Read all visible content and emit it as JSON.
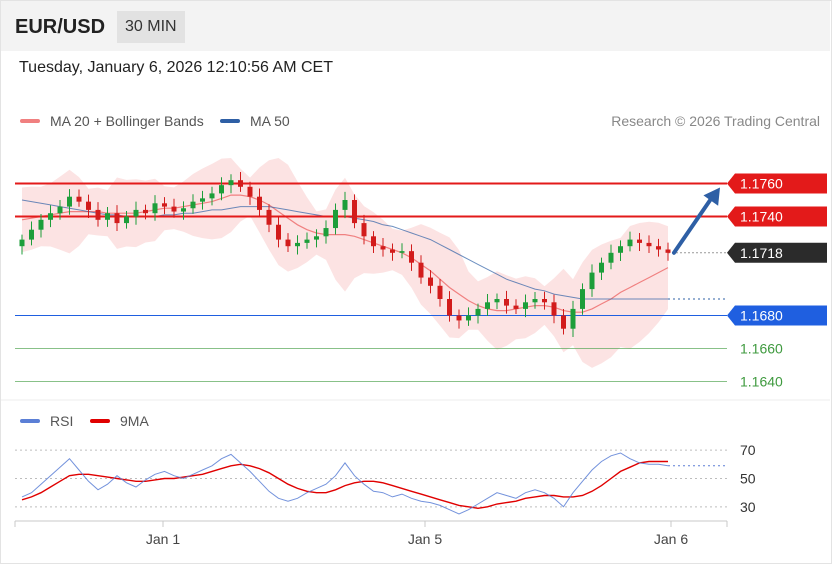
{
  "header": {
    "pair": "EUR/USD",
    "timeframe": "30 MIN"
  },
  "date_text": "Tuesday, January 6, 2026 12:10:56 AM CET",
  "legend": {
    "ma20": {
      "label": "MA 20 + Bollinger Bands",
      "color": "#f08080"
    },
    "ma50": {
      "label": "MA 50",
      "color": "#2e5fa5"
    },
    "credit": "Research © 2026 Trading Central"
  },
  "rsi_legend": {
    "rsi": {
      "label": "RSI",
      "color": "#5b7fd6"
    },
    "ma9": {
      "label": "9MA",
      "color": "#e00000"
    }
  },
  "chart_data": [
    {
      "type": "candlestick",
      "symbol": "EUR/USD",
      "timeframe": "30 MIN",
      "y_range": [
        1.163,
        1.179
      ],
      "levels": [
        {
          "value": 1.176,
          "label": "1.1760",
          "kind": "resistance",
          "color": "#e31a1a"
        },
        {
          "value": 1.174,
          "label": "1.1740",
          "kind": "resistance",
          "color": "#e31a1a"
        },
        {
          "value": 1.1718,
          "label": "1.1718",
          "kind": "last",
          "color": "#2b2b2b"
        },
        {
          "value": 1.168,
          "label": "1.1680",
          "kind": "support",
          "color": "#1f5fe0"
        },
        {
          "value": 1.166,
          "label": "1.1660",
          "kind": "support",
          "color": "#55a655"
        },
        {
          "value": 1.164,
          "label": "1.1640",
          "kind": "support",
          "color": "#55a655"
        }
      ],
      "x_ticks": [
        "Jan 1",
        "Jan 5",
        "Jan 6"
      ],
      "forecast_arrow": {
        "from": 1.1718,
        "to": 1.176,
        "color": "#2e5fa5"
      },
      "series": [
        {
          "name": "Close",
          "values": [
            1.1726,
            1.1732,
            1.1738,
            1.1742,
            1.1746,
            1.1752,
            1.1749,
            1.1744,
            1.1738,
            1.1742,
            1.1736,
            1.174,
            1.1744,
            1.1742,
            1.1748,
            1.1746,
            1.1743,
            1.1745,
            1.1749,
            1.1751,
            1.1754,
            1.1759,
            1.1762,
            1.1758,
            1.1752,
            1.1744,
            1.1735,
            1.1726,
            1.1722,
            1.1724,
            1.1726,
            1.1728,
            1.1733,
            1.1744,
            1.175,
            1.1736,
            1.1728,
            1.1722,
            1.172,
            1.1718,
            1.1719,
            1.1712,
            1.1703,
            1.1698,
            1.169,
            1.168,
            1.1677,
            1.168,
            1.1684,
            1.1688,
            1.169,
            1.1686,
            1.1684,
            1.1688,
            1.169,
            1.1688,
            1.168,
            1.1672,
            1.1684,
            1.1696,
            1.1706,
            1.1712,
            1.1718,
            1.1722,
            1.1726,
            1.1724,
            1.1722,
            1.172,
            1.1718
          ]
        },
        {
          "name": "MA 20",
          "values": [
            1.1738,
            1.1739,
            1.174,
            1.1741,
            1.1742,
            1.1743,
            1.1743,
            1.1743,
            1.1743,
            1.1742,
            1.1742,
            1.1742,
            1.1742,
            1.1743,
            1.1744,
            1.1745,
            1.1745,
            1.1746,
            1.1747,
            1.1748,
            1.1749,
            1.1751,
            1.1753,
            1.1753,
            1.1752,
            1.175,
            1.1747,
            1.1743,
            1.1739,
            1.1735,
            1.1732,
            1.173,
            1.1729,
            1.1729,
            1.1729,
            1.1728,
            1.1726,
            1.1724,
            1.1722,
            1.172,
            1.1718,
            1.1715,
            1.1711,
            1.1707,
            1.1702,
            1.1697,
            1.1693,
            1.1689,
            1.1686,
            1.1684,
            1.1683,
            1.1683,
            1.1684,
            1.1685,
            1.1686,
            1.1686,
            1.1685,
            1.1683,
            1.1682,
            1.1682,
            1.1684,
            1.1687,
            1.169,
            1.1694,
            1.1697,
            1.17,
            1.1703,
            1.1706,
            1.1709
          ]
        },
        {
          "name": "MA 50",
          "values": [
            1.175,
            1.1749,
            1.1748,
            1.1747,
            1.1746,
            1.1745,
            1.1744,
            1.1743,
            1.1742,
            1.1741,
            1.1741,
            1.174,
            1.174,
            1.174,
            1.174,
            1.1741,
            1.1741,
            1.1742,
            1.1742,
            1.1743,
            1.1744,
            1.1744,
            1.1745,
            1.1746,
            1.1746,
            1.1746,
            1.1746,
            1.1745,
            1.1744,
            1.1743,
            1.1742,
            1.1741,
            1.174,
            1.174,
            1.174,
            1.1739,
            1.1738,
            1.1737,
            1.1735,
            1.1734,
            1.1732,
            1.173,
            1.1728,
            1.1726,
            1.1723,
            1.172,
            1.1717,
            1.1714,
            1.1711,
            1.1708,
            1.1705,
            1.1702,
            1.17,
            1.1698,
            1.1696,
            1.1695,
            1.1693,
            1.1692,
            1.1691,
            1.169,
            1.169,
            1.169,
            1.169,
            1.169,
            1.169,
            1.169,
            1.169,
            1.169,
            1.169
          ]
        }
      ]
    },
    {
      "type": "line",
      "name": "RSI",
      "y_range": [
        20,
        80
      ],
      "y_ticks": [
        "70",
        "50",
        "30"
      ],
      "x_ticks": [
        "Jan 1",
        "Jan 5",
        "Jan 6"
      ],
      "series": [
        {
          "name": "RSI",
          "values": [
            37,
            40,
            46,
            52,
            58,
            64,
            56,
            48,
            42,
            46,
            52,
            47,
            44,
            49,
            53,
            55,
            52,
            50,
            53,
            56,
            59,
            64,
            67,
            61,
            55,
            48,
            41,
            36,
            34,
            36,
            40,
            43,
            46,
            52,
            61,
            52,
            46,
            41,
            40,
            37,
            39,
            36,
            34,
            33,
            31,
            28,
            25,
            28,
            32,
            36,
            40,
            38,
            36,
            40,
            42,
            40,
            36,
            30,
            40,
            48,
            56,
            62,
            66,
            68,
            64,
            61,
            60,
            60,
            59
          ]
        },
        {
          "name": "9MA",
          "values": [
            35,
            37,
            40,
            44,
            48,
            52,
            53,
            53,
            52,
            51,
            50,
            49,
            48,
            48,
            49,
            50,
            50,
            51,
            52,
            53,
            55,
            57,
            59,
            60,
            59,
            57,
            54,
            50,
            46,
            43,
            41,
            40,
            40,
            42,
            45,
            47,
            48,
            48,
            47,
            45,
            43,
            41,
            39,
            37,
            35,
            33,
            31,
            30,
            29,
            30,
            32,
            33,
            34,
            36,
            37,
            38,
            38,
            37,
            37,
            38,
            41,
            45,
            50,
            55,
            58,
            61,
            62,
            62,
            62
          ]
        }
      ]
    }
  ]
}
